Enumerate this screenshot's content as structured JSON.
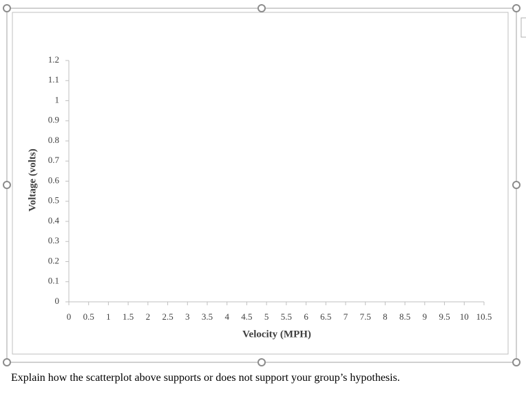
{
  "chart_data": {
    "type": "scatter",
    "xlabel": "Velocity (MPH)",
    "ylabel": "Voltage (volts)",
    "xlim": [
      0,
      10.5
    ],
    "xticks": [
      0,
      0.5,
      1,
      1.5,
      2,
      2.5,
      3,
      3.5,
      4,
      4.5,
      5,
      5.5,
      6,
      6.5,
      7,
      7.5,
      8,
      8.5,
      9,
      9.5,
      10,
      10.5
    ],
    "ylim": [
      0,
      1.2
    ],
    "yticks": [
      0,
      0.1,
      0.2,
      0.3,
      0.4,
      0.5,
      0.6,
      0.7,
      0.8,
      0.9,
      1,
      1.1,
      1.2
    ]
  },
  "document": {
    "text": "Explain how the scatterplot above supports or does not support your group’s hypothesis."
  }
}
